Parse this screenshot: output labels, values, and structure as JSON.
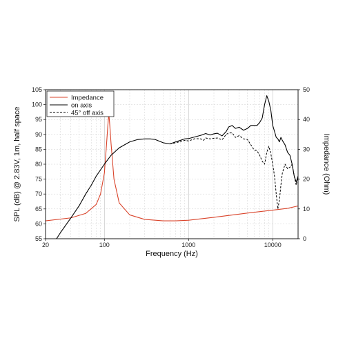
{
  "chart_data": {
    "type": "line",
    "xlabel": "Frequency (Hz)",
    "ylabel_left": "SPL (dB) @ 2.83V, 1m, half space",
    "ylabel_right": "Impedance (Ohm)",
    "x_scale": "log",
    "xlim": [
      20,
      20000
    ],
    "ylim_left": [
      55,
      105
    ],
    "ylim_right": [
      0,
      50
    ],
    "x_ticks": [
      20,
      100,
      1000,
      10000
    ],
    "x_tick_labels": [
      "20",
      "100",
      "1000",
      "10000"
    ],
    "y_left_ticks": [
      55,
      60,
      65,
      70,
      75,
      80,
      85,
      90,
      95,
      100,
      105
    ],
    "y_left_tick_labels": [
      "55",
      "60",
      "65",
      "70",
      "75",
      "80",
      "85",
      "90",
      "95",
      "100",
      "105"
    ],
    "y_right_ticks": [
      0,
      10,
      20,
      30,
      40,
      50
    ],
    "y_right_tick_labels": [
      "0",
      "10",
      "20",
      "30",
      "40",
      "50"
    ],
    "grid": true,
    "legend_position": "top-left",
    "series": [
      {
        "name": "Impedance",
        "axis": "right",
        "color": "#d9432a",
        "style": "solid",
        "x": [
          20,
          40,
          60,
          80,
          90,
          100,
          105,
          110,
          113,
          116,
          120,
          130,
          150,
          200,
          300,
          500,
          700,
          1000,
          2000,
          5000,
          10000,
          15000,
          20000
        ],
        "y": [
          6,
          7,
          8.5,
          11.5,
          15,
          22,
          30,
          38,
          42,
          38,
          32,
          20,
          12,
          8,
          6.5,
          6,
          6,
          6.2,
          7.2,
          8.6,
          9.6,
          10.2,
          11
        ]
      },
      {
        "name": "on axis",
        "axis": "left",
        "color": "#000000",
        "style": "solid",
        "x": [
          20,
          25,
          30,
          40,
          50,
          60,
          70,
          80,
          100,
          120,
          150,
          200,
          250,
          300,
          350,
          400,
          500,
          600,
          700,
          800,
          900,
          1000,
          1200,
          1400,
          1600,
          1800,
          2000,
          2200,
          2500,
          2800,
          3000,
          3300,
          3600,
          4000,
          4500,
          5000,
          5500,
          6000,
          6500,
          7000,
          7500,
          8000,
          8500,
          9000,
          9500,
          10000,
          10500,
          11000,
          11500,
          12000,
          12500,
          13000,
          14000,
          15000,
          16000,
          17000,
          18000,
          19000,
          20000
        ],
        "y": [
          51,
          53.5,
          57,
          62,
          66,
          70,
          73,
          76,
          80,
          83,
          85.5,
          87.5,
          88.3,
          88.5,
          88.5,
          88.3,
          87.2,
          86.8,
          87.5,
          88,
          88.5,
          88.6,
          89.2,
          89.7,
          90.3,
          89.8,
          90.2,
          90.4,
          89.5,
          91,
          92.5,
          93,
          92,
          92.4,
          91.4,
          92,
          93,
          93,
          93,
          94,
          95.5,
          100,
          103,
          101,
          98,
          93,
          91,
          89,
          88.5,
          87.5,
          89,
          88,
          86.5,
          84,
          83,
          80,
          76,
          74,
          76
        ]
      },
      {
        "name": "45° off axis",
        "axis": "left",
        "color": "#000000",
        "style": "dashed",
        "x": [
          600,
          700,
          800,
          900,
          1000,
          1200,
          1400,
          1500,
          1600,
          1800,
          2000,
          2200,
          2500,
          2800,
          3000,
          3300,
          3600,
          4000,
          4500,
          5000,
          5500,
          6000,
          6500,
          7000,
          7500,
          8000,
          8500,
          9000,
          9500,
          10000,
          10500,
          11000,
          11500,
          12000,
          12500,
          13000,
          14000,
          15000,
          16000,
          17000,
          18000,
          19000,
          20000
        ],
        "y": [
          86.8,
          87.2,
          87.6,
          88,
          87.8,
          88.6,
          88.5,
          88,
          88.8,
          88.5,
          88.7,
          88.8,
          88.2,
          90,
          90.5,
          90.5,
          89,
          89.6,
          88.5,
          88.3,
          86.5,
          84.8,
          84.5,
          83,
          81,
          80,
          84,
          86,
          83.5,
          80,
          76,
          70,
          65,
          68,
          73,
          77,
          80,
          78.5,
          79,
          80,
          76,
          73,
          76
        ]
      }
    ]
  }
}
